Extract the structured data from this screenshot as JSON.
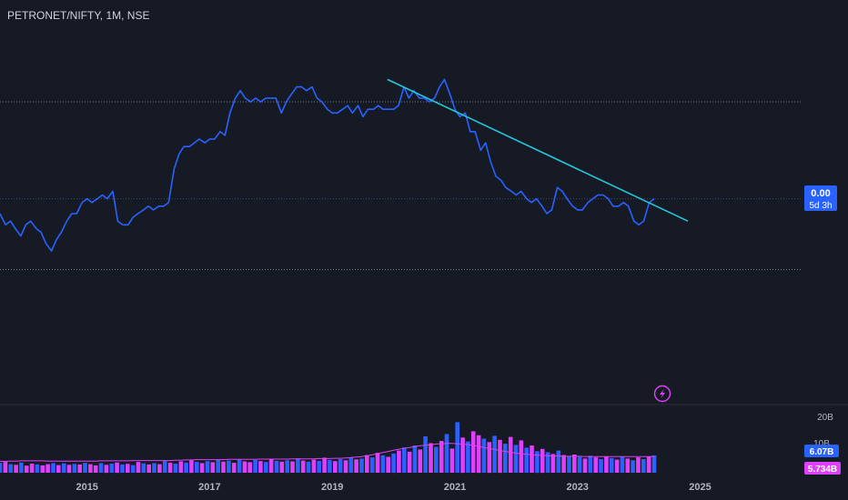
{
  "header": {
    "symbol": "PETRONET/NIFTY, 1M, NSE"
  },
  "price_badge": {
    "value": "0.00",
    "countdown": "5d 3h"
  },
  "volume_axis": {
    "ticks": [
      "20B",
      "10B"
    ],
    "badge_volume": "6.07B",
    "badge_ma": "5.734B"
  },
  "colors": {
    "background": "#161a25",
    "price_line": "#2962ff",
    "trendline": "#26c6da",
    "vol_up": "#2962ff",
    "vol_down": "#e040fb",
    "vol_ma": "#e040fb",
    "dotted_line": "#6f7a8f",
    "axis_text": "#b2b5be"
  },
  "icons": {
    "bolt": "lightning-bolt-icon"
  },
  "chart_data": {
    "type": "line",
    "price_scale": {
      "min": 0,
      "max": 1
    },
    "x_ticks": [
      {
        "label": "2015",
        "x": 2015
      },
      {
        "label": "2017",
        "x": 2017
      },
      {
        "label": "2019",
        "x": 2019
      },
      {
        "label": "2021",
        "x": 2021
      },
      {
        "label": "2023",
        "x": 2023
      },
      {
        "label": "2025",
        "x": 2025
      }
    ],
    "x_range": [
      2013.58,
      2026.64
    ],
    "reference_lines": [
      0.8,
      0.54,
      0.35
    ],
    "series": [
      {
        "values": [
          [
            2013.58,
            0.5
          ],
          [
            2013.67,
            0.47
          ],
          [
            2013.75,
            0.48
          ],
          [
            2013.83,
            0.46
          ],
          [
            2013.92,
            0.44
          ],
          [
            2014.0,
            0.47
          ],
          [
            2014.08,
            0.48
          ],
          [
            2014.17,
            0.46
          ],
          [
            2014.25,
            0.45
          ],
          [
            2014.33,
            0.42
          ],
          [
            2014.42,
            0.4
          ],
          [
            2014.5,
            0.43
          ],
          [
            2014.58,
            0.45
          ],
          [
            2014.67,
            0.48
          ],
          [
            2014.75,
            0.5
          ],
          [
            2014.83,
            0.5
          ],
          [
            2014.92,
            0.53
          ],
          [
            2015.0,
            0.54
          ],
          [
            2015.08,
            0.53
          ],
          [
            2015.17,
            0.54
          ],
          [
            2015.25,
            0.55
          ],
          [
            2015.33,
            0.54
          ],
          [
            2015.42,
            0.56
          ],
          [
            2015.5,
            0.48
          ],
          [
            2015.58,
            0.47
          ],
          [
            2015.67,
            0.47
          ],
          [
            2015.75,
            0.49
          ],
          [
            2015.83,
            0.5
          ],
          [
            2015.92,
            0.51
          ],
          [
            2016.0,
            0.52
          ],
          [
            2016.08,
            0.51
          ],
          [
            2016.17,
            0.52
          ],
          [
            2016.25,
            0.52
          ],
          [
            2016.33,
            0.53
          ],
          [
            2016.42,
            0.62
          ],
          [
            2016.5,
            0.66
          ],
          [
            2016.58,
            0.68
          ],
          [
            2016.67,
            0.68
          ],
          [
            2016.75,
            0.69
          ],
          [
            2016.83,
            0.7
          ],
          [
            2016.92,
            0.69
          ],
          [
            2017.0,
            0.7
          ],
          [
            2017.08,
            0.7
          ],
          [
            2017.17,
            0.72
          ],
          [
            2017.25,
            0.71
          ],
          [
            2017.33,
            0.77
          ],
          [
            2017.42,
            0.81
          ],
          [
            2017.5,
            0.83
          ],
          [
            2017.58,
            0.81
          ],
          [
            2017.67,
            0.8
          ],
          [
            2017.75,
            0.81
          ],
          [
            2017.83,
            0.8
          ],
          [
            2017.92,
            0.81
          ],
          [
            2018.0,
            0.81
          ],
          [
            2018.08,
            0.81
          ],
          [
            2018.17,
            0.77
          ],
          [
            2018.25,
            0.8
          ],
          [
            2018.33,
            0.82
          ],
          [
            2018.42,
            0.84
          ],
          [
            2018.5,
            0.84
          ],
          [
            2018.58,
            0.83
          ],
          [
            2018.67,
            0.84
          ],
          [
            2018.75,
            0.81
          ],
          [
            2018.83,
            0.8
          ],
          [
            2018.92,
            0.78
          ],
          [
            2019.0,
            0.77
          ],
          [
            2019.08,
            0.77
          ],
          [
            2019.17,
            0.78
          ],
          [
            2019.25,
            0.79
          ],
          [
            2019.33,
            0.77
          ],
          [
            2019.42,
            0.79
          ],
          [
            2019.5,
            0.76
          ],
          [
            2019.58,
            0.78
          ],
          [
            2019.67,
            0.78
          ],
          [
            2019.75,
            0.79
          ],
          [
            2019.83,
            0.78
          ],
          [
            2019.92,
            0.78
          ],
          [
            2020.0,
            0.78
          ],
          [
            2020.08,
            0.79
          ],
          [
            2020.17,
            0.84
          ],
          [
            2020.25,
            0.81
          ],
          [
            2020.33,
            0.83
          ],
          [
            2020.42,
            0.81
          ],
          [
            2020.5,
            0.81
          ],
          [
            2020.58,
            0.8
          ],
          [
            2020.67,
            0.81
          ],
          [
            2020.75,
            0.84
          ],
          [
            2020.83,
            0.86
          ],
          [
            2020.92,
            0.82
          ],
          [
            2021.0,
            0.78
          ],
          [
            2021.08,
            0.76
          ],
          [
            2021.17,
            0.77
          ],
          [
            2021.25,
            0.72
          ],
          [
            2021.33,
            0.72
          ],
          [
            2021.42,
            0.67
          ],
          [
            2021.5,
            0.69
          ],
          [
            2021.58,
            0.64
          ],
          [
            2021.67,
            0.6
          ],
          [
            2021.75,
            0.59
          ],
          [
            2021.83,
            0.57
          ],
          [
            2021.92,
            0.56
          ],
          [
            2022.0,
            0.55
          ],
          [
            2022.08,
            0.56
          ],
          [
            2022.17,
            0.54
          ],
          [
            2022.25,
            0.53
          ],
          [
            2022.33,
            0.54
          ],
          [
            2022.42,
            0.52
          ],
          [
            2022.5,
            0.5
          ],
          [
            2022.58,
            0.51
          ],
          [
            2022.67,
            0.57
          ],
          [
            2022.75,
            0.56
          ],
          [
            2022.83,
            0.54
          ],
          [
            2022.92,
            0.52
          ],
          [
            2023.0,
            0.51
          ],
          [
            2023.08,
            0.51
          ],
          [
            2023.17,
            0.53
          ],
          [
            2023.25,
            0.54
          ],
          [
            2023.33,
            0.55
          ],
          [
            2023.42,
            0.55
          ],
          [
            2023.5,
            0.54
          ],
          [
            2023.58,
            0.52
          ],
          [
            2023.67,
            0.52
          ],
          [
            2023.75,
            0.53
          ],
          [
            2023.83,
            0.52
          ],
          [
            2023.92,
            0.48
          ],
          [
            2024.0,
            0.47
          ],
          [
            2024.08,
            0.48
          ],
          [
            2024.17,
            0.53
          ],
          [
            2024.25,
            0.54
          ]
        ]
      }
    ],
    "trendline": {
      "start": [
        2019.9,
        0.86
      ],
      "end": [
        2024.8,
        0.48
      ]
    },
    "volume": {
      "ylim": [
        0,
        24
      ],
      "ma_values": [
        4.0,
        4.0,
        4.1,
        4.1,
        4.2,
        4.2,
        4.2,
        4.2,
        4.2,
        4.1,
        4.1,
        4.1,
        4.1,
        4.1,
        4.1,
        4.1,
        4.1,
        4.1,
        4.1,
        4.2,
        4.2,
        4.2,
        4.2,
        4.2,
        4.2,
        4.3,
        4.3,
        4.3,
        4.3,
        4.3,
        4.3,
        4.3,
        4.3,
        4.4,
        4.4,
        4.5,
        4.5,
        4.6,
        4.6,
        4.6,
        4.6,
        4.6,
        4.6,
        4.7,
        4.7,
        4.7,
        4.7,
        4.7,
        4.7,
        4.8,
        4.8,
        4.8,
        4.8,
        4.8,
        4.8,
        4.9,
        4.9,
        4.9,
        4.9,
        4.9,
        5.0,
        5.0,
        5.0,
        5.1,
        5.1,
        5.2,
        5.3,
        5.5,
        5.7,
        6.0,
        6.3,
        6.7,
        7.1,
        7.5,
        7.9,
        8.3,
        8.6,
        8.9,
        9.2,
        9.5,
        9.7,
        9.9,
        10.1,
        10.2,
        10.3,
        10.3,
        10.2,
        10.1,
        9.9,
        9.6,
        9.3,
        8.9,
        8.5,
        8.2,
        7.8,
        7.5,
        7.2,
        6.9,
        6.7,
        6.5,
        6.3,
        6.2,
        6.1,
        6.0,
        5.9,
        5.9,
        5.8,
        5.8,
        5.8,
        5.8,
        5.7,
        5.7,
        5.7,
        5.7,
        5.7,
        5.7,
        5.7,
        5.7,
        5.7,
        5.7,
        5.7,
        5.7,
        5.7,
        5.73
      ],
      "bars": [
        [
          3.5,
          "u"
        ],
        [
          3.8,
          "d"
        ],
        [
          3.0,
          "u"
        ],
        [
          2.8,
          "d"
        ],
        [
          3.6,
          "u"
        ],
        [
          2.5,
          "d"
        ],
        [
          3.2,
          "d"
        ],
        [
          2.9,
          "u"
        ],
        [
          2.6,
          "d"
        ],
        [
          3.0,
          "d"
        ],
        [
          3.4,
          "u"
        ],
        [
          2.7,
          "d"
        ],
        [
          3.3,
          "u"
        ],
        [
          2.8,
          "d"
        ],
        [
          3.1,
          "u"
        ],
        [
          2.9,
          "d"
        ],
        [
          3.5,
          "u"
        ],
        [
          3.0,
          "d"
        ],
        [
          2.6,
          "d"
        ],
        [
          3.4,
          "u"
        ],
        [
          2.8,
          "d"
        ],
        [
          3.2,
          "u"
        ],
        [
          3.6,
          "d"
        ],
        [
          2.9,
          "u"
        ],
        [
          3.1,
          "d"
        ],
        [
          2.7,
          "u"
        ],
        [
          3.8,
          "d"
        ],
        [
          3.3,
          "u"
        ],
        [
          2.9,
          "d"
        ],
        [
          3.4,
          "u"
        ],
        [
          3.0,
          "d"
        ],
        [
          4.2,
          "u"
        ],
        [
          3.5,
          "d"
        ],
        [
          3.2,
          "u"
        ],
        [
          4.0,
          "d"
        ],
        [
          3.6,
          "u"
        ],
        [
          4.4,
          "d"
        ],
        [
          3.8,
          "u"
        ],
        [
          3.4,
          "d"
        ],
        [
          4.1,
          "u"
        ],
        [
          3.7,
          "d"
        ],
        [
          4.6,
          "u"
        ],
        [
          3.9,
          "d"
        ],
        [
          4.3,
          "u"
        ],
        [
          3.5,
          "d"
        ],
        [
          4.8,
          "u"
        ],
        [
          4.0,
          "d"
        ],
        [
          3.7,
          "d"
        ],
        [
          4.5,
          "u"
        ],
        [
          4.1,
          "d"
        ],
        [
          3.8,
          "u"
        ],
        [
          4.9,
          "d"
        ],
        [
          4.2,
          "u"
        ],
        [
          3.9,
          "d"
        ],
        [
          4.4,
          "u"
        ],
        [
          4.0,
          "d"
        ],
        [
          5.1,
          "u"
        ],
        [
          4.3,
          "d"
        ],
        [
          3.9,
          "u"
        ],
        [
          4.6,
          "d"
        ],
        [
          4.2,
          "u"
        ],
        [
          5.3,
          "d"
        ],
        [
          4.5,
          "u"
        ],
        [
          4.1,
          "d"
        ],
        [
          4.8,
          "u"
        ],
        [
          4.4,
          "d"
        ],
        [
          5.5,
          "u"
        ],
        [
          4.7,
          "d"
        ],
        [
          5.0,
          "u"
        ],
        [
          6.2,
          "d"
        ],
        [
          5.4,
          "u"
        ],
        [
          7.0,
          "d"
        ],
        [
          6.1,
          "u"
        ],
        [
          5.6,
          "d"
        ],
        [
          6.8,
          "u"
        ],
        [
          7.8,
          "d"
        ],
        [
          8.9,
          "u"
        ],
        [
          7.4,
          "d"
        ],
        [
          9.6,
          "u"
        ],
        [
          8.2,
          "d"
        ],
        [
          12.8,
          "u"
        ],
        [
          10.4,
          "d"
        ],
        [
          9.1,
          "u"
        ],
        [
          11.2,
          "d"
        ],
        [
          13.6,
          "u"
        ],
        [
          8.5,
          "d"
        ],
        [
          17.8,
          "u"
        ],
        [
          12.4,
          "d"
        ],
        [
          11.0,
          "u"
        ],
        [
          14.6,
          "d"
        ],
        [
          13.2,
          "d"
        ],
        [
          12.0,
          "u"
        ],
        [
          10.8,
          "d"
        ],
        [
          13.0,
          "u"
        ],
        [
          11.6,
          "d"
        ],
        [
          10.2,
          "u"
        ],
        [
          12.6,
          "d"
        ],
        [
          9.8,
          "u"
        ],
        [
          11.4,
          "d"
        ],
        [
          8.8,
          "u"
        ],
        [
          9.6,
          "d"
        ],
        [
          7.6,
          "u"
        ],
        [
          8.4,
          "d"
        ],
        [
          7.2,
          "u"
        ],
        [
          6.6,
          "d"
        ],
        [
          7.8,
          "u"
        ],
        [
          6.2,
          "d"
        ],
        [
          5.8,
          "u"
        ],
        [
          6.4,
          "d"
        ],
        [
          5.6,
          "u"
        ],
        [
          5.0,
          "d"
        ],
        [
          6.0,
          "u"
        ],
        [
          5.4,
          "d"
        ],
        [
          4.8,
          "u"
        ],
        [
          5.8,
          "d"
        ],
        [
          5.2,
          "u"
        ],
        [
          4.6,
          "d"
        ],
        [
          5.6,
          "u"
        ],
        [
          5.0,
          "d"
        ],
        [
          4.4,
          "u"
        ],
        [
          5.4,
          "d"
        ],
        [
          4.8,
          "u"
        ],
        [
          5.6,
          "d"
        ],
        [
          6.07,
          "u"
        ]
      ]
    }
  }
}
